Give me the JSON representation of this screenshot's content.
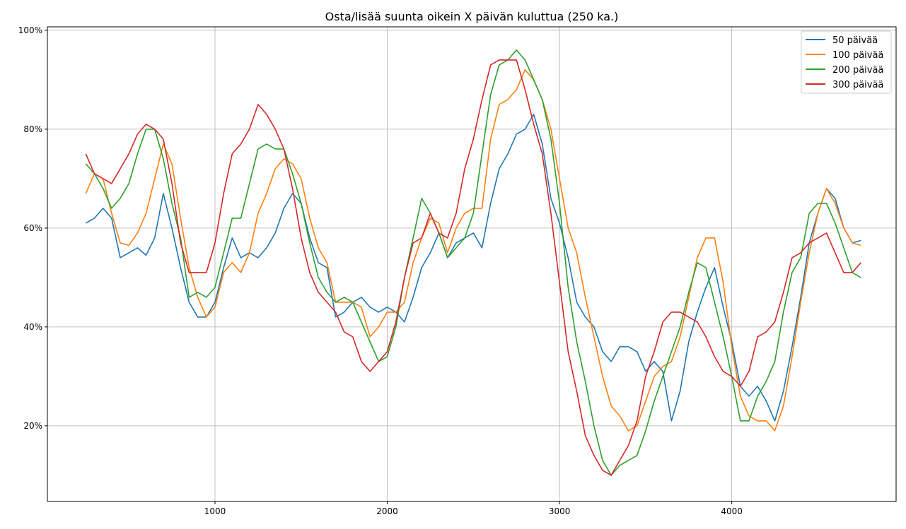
{
  "chart_data": {
    "type": "line",
    "title": "Osta/lisää suunta oikein X päivän kuluttua (250 ka.)",
    "xlabel": "",
    "ylabel": "",
    "xlim": [
      27,
      4954
    ],
    "ylim": [
      4.7,
      100.7
    ],
    "grid": true,
    "legend_position": "top-right",
    "xticks": [
      1000,
      2000,
      3000,
      4000
    ],
    "xtick_labels": [
      "1000",
      "2000",
      "3000",
      "4000"
    ],
    "yticks": [
      20,
      40,
      60,
      80,
      100
    ],
    "ytick_labels": [
      "20%",
      "40%",
      "60%",
      "80%",
      "100%"
    ],
    "x": [
      250,
      300,
      350,
      400,
      450,
      500,
      550,
      600,
      650,
      700,
      750,
      800,
      850,
      900,
      950,
      1000,
      1050,
      1100,
      1150,
      1200,
      1250,
      1300,
      1350,
      1400,
      1450,
      1500,
      1550,
      1600,
      1650,
      1700,
      1750,
      1800,
      1850,
      1900,
      1950,
      2000,
      2050,
      2100,
      2150,
      2200,
      2250,
      2300,
      2350,
      2400,
      2450,
      2500,
      2550,
      2600,
      2650,
      2700,
      2750,
      2800,
      2850,
      2900,
      2950,
      3000,
      3050,
      3100,
      3150,
      3200,
      3250,
      3300,
      3350,
      3400,
      3450,
      3500,
      3550,
      3600,
      3650,
      3700,
      3750,
      3800,
      3850,
      3900,
      3950,
      4000,
      4050,
      4100,
      4150,
      4200,
      4250,
      4300,
      4350,
      4400,
      4450,
      4500,
      4550,
      4600,
      4650,
      4700,
      4750
    ],
    "series": [
      {
        "name": "50 päivää",
        "color": "#1f77b4",
        "values": [
          61,
          62,
          64,
          62,
          54,
          55,
          56,
          54.5,
          58,
          67,
          60,
          52,
          45,
          42,
          42,
          45,
          52,
          58,
          54,
          55,
          54,
          56,
          59,
          64,
          67,
          65,
          58,
          53,
          52,
          42,
          43,
          45,
          46,
          44,
          43,
          44,
          43,
          41,
          46,
          52,
          55,
          59,
          54,
          57,
          58,
          59,
          56,
          65,
          72,
          75,
          79,
          80,
          83,
          77,
          66,
          61,
          54,
          45,
          42,
          40,
          35,
          33,
          36,
          36,
          35,
          31,
          33,
          31,
          21,
          27,
          37,
          43,
          48,
          52,
          44,
          37,
          28,
          26,
          28,
          25,
          21,
          27,
          36,
          46,
          57,
          63,
          68,
          66,
          60,
          57,
          57.5
        ]
      },
      {
        "name": "100 päivää",
        "color": "#ff7f0e",
        "values": [
          67,
          71,
          70,
          63,
          57,
          56.5,
          59,
          63,
          70,
          77,
          73,
          62,
          52,
          46,
          42,
          44,
          51,
          53,
          51,
          55,
          63,
          67,
          72,
          74,
          73,
          70,
          62,
          56,
          53,
          45,
          45,
          45,
          44,
          38,
          40,
          43,
          43,
          45,
          53,
          58,
          62,
          61,
          55,
          60,
          63,
          64,
          64,
          78,
          85,
          86,
          88,
          92,
          90,
          86,
          80,
          70,
          60,
          55,
          46,
          38,
          30,
          24,
          22,
          19,
          20,
          25,
          30,
          32,
          33,
          38,
          46,
          54,
          58,
          58,
          49,
          36,
          26,
          22,
          21,
          21,
          19,
          24,
          34,
          45,
          55,
          63,
          68,
          65,
          60,
          57,
          56.5
        ]
      },
      {
        "name": "200 päivää",
        "color": "#2ca02c",
        "values": [
          73,
          71,
          68,
          64,
          66,
          69,
          75,
          80,
          80,
          74,
          65,
          58,
          46,
          47,
          46,
          48,
          55,
          62,
          62,
          69,
          76,
          77,
          76,
          76,
          71,
          65,
          57,
          50,
          47,
          45,
          46,
          45,
          41,
          37,
          33,
          34,
          40,
          50,
          58,
          66,
          63,
          59,
          54,
          56,
          58,
          63,
          75,
          87,
          93,
          94,
          96,
          94,
          90,
          86,
          78,
          65,
          48,
          37,
          29,
          20,
          13,
          10,
          12,
          13,
          14,
          19,
          25,
          30,
          35,
          40,
          47,
          53,
          52,
          45,
          38,
          30,
          21,
          21,
          26,
          29,
          33,
          43,
          51,
          54,
          63,
          65,
          65,
          61,
          56,
          51,
          50
        ]
      },
      {
        "name": "300 päivää",
        "color": "#d62728",
        "values": [
          75,
          71,
          70,
          69,
          72,
          75,
          79,
          81,
          80,
          78,
          69,
          57,
          51,
          51,
          51,
          57,
          67,
          75,
          77,
          80,
          85,
          83,
          80,
          76,
          68,
          58,
          51,
          47,
          45,
          43,
          39,
          38,
          33,
          31,
          33,
          35,
          41,
          50,
          57,
          58,
          63,
          59,
          58,
          63,
          72,
          78,
          86,
          93,
          94,
          94,
          94,
          88,
          81,
          75,
          63,
          49,
          35,
          27,
          18,
          14,
          11,
          10,
          13,
          16,
          21,
          30,
          35,
          41,
          43,
          43,
          42,
          41,
          38,
          34,
          31,
          30,
          28,
          31,
          38,
          39,
          41,
          47,
          54,
          55,
          57,
          58,
          59,
          55,
          51,
          51,
          53
        ]
      }
    ]
  }
}
